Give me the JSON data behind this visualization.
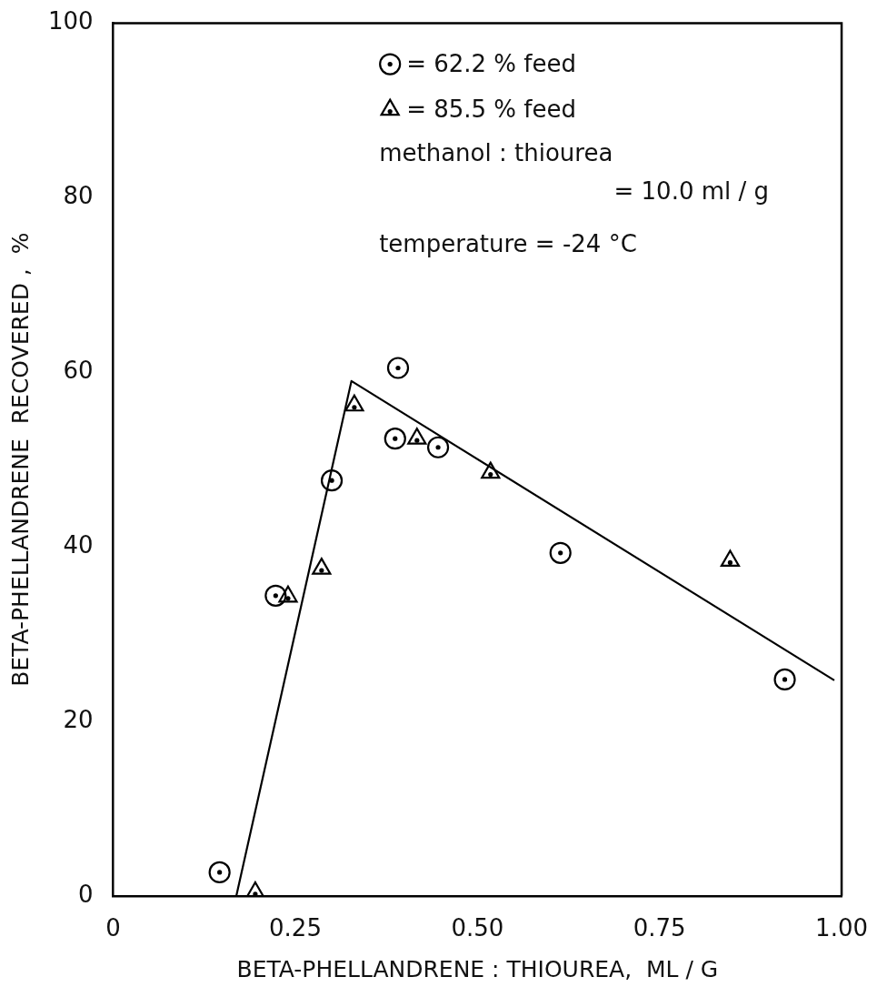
{
  "chart_data": {
    "type": "scatter",
    "xlabel": "BETA-PHELLANDRENE : THIOUREA,  ML / G",
    "ylabel": "BETA-PHELLANDRENE  RECOVERED ,  %",
    "xlim": [
      0,
      1
    ],
    "xticks": [
      0,
      {
        "value": 0.25,
        "label": "0.25"
      },
      {
        "value": 0.5,
        "label": "0.50"
      },
      {
        "value": 0.75,
        "label": "0.75"
      },
      {
        "value": 1,
        "label": "1.00"
      }
    ],
    "ylim": [
      0,
      100
    ],
    "yticks": [
      0,
      20,
      40,
      60,
      80,
      100
    ],
    "grid": false,
    "legend": "top right",
    "annotations": [
      "methanol : thiourea",
      "= 10.0 ml / g",
      "temperature = -24 °C"
    ],
    "series": [
      {
        "name": "= 62.2 % feed",
        "color": "#000000",
        "marker": "circle",
        "x": [
          0.146,
          0.223,
          0.3,
          0.387,
          0.391,
          0.446,
          0.614,
          0.922
        ],
        "values": [
          2.7,
          34.4,
          47.6,
          52.4,
          60.5,
          51.4,
          39.3,
          24.8
        ]
      },
      {
        "name": "= 85.5 % feed",
        "color": "#000000",
        "marker": "triangle",
        "x": [
          0.195,
          0.24,
          0.286,
          0.331,
          0.417,
          0.518,
          0.847
        ],
        "values": [
          0.4,
          34.3,
          37.5,
          56.2,
          52.4,
          48.5,
          38.4
        ]
      },
      {
        "type": "line",
        "color": "#000000",
        "marker": "none",
        "x": [
          0.169,
          0.327,
          0.99
        ],
        "values": [
          0,
          59,
          24.7
        ]
      }
    ]
  }
}
